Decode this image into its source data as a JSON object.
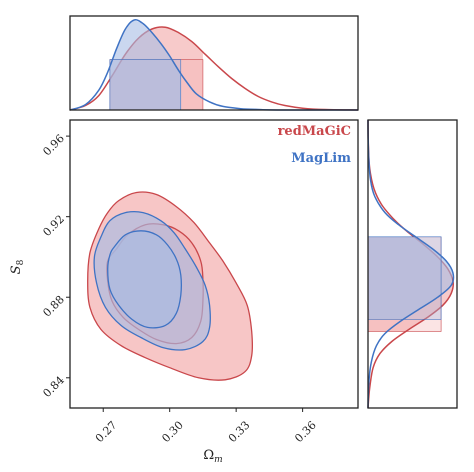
{
  "chart_data": {
    "type": "contour",
    "xlabel": "Ω_m",
    "xlabel_main": "Ω",
    "xlabel_sub": "m",
    "ylabel": "S_8",
    "ylabel_main": "S",
    "ylabel_sub": "8",
    "xlim": [
      0.255,
      0.385
    ],
    "ylim": [
      0.825,
      0.968
    ],
    "xticks": [
      0.27,
      0.3,
      0.33,
      0.36
    ],
    "xtick_labels": [
      "0.27",
      "0.30",
      "0.33",
      "0.36"
    ],
    "yticks": [
      0.84,
      0.88,
      0.92,
      0.96
    ],
    "ytick_labels": [
      "0.84",
      "0.88",
      "0.92",
      "0.96"
    ],
    "legend_position": "top-right",
    "series": [
      {
        "name": "redMaGiC",
        "color": "#c9474b",
        "fill": "#f4b3b3",
        "omega_m_mean": 0.292,
        "s8_mean": 0.884,
        "omega_m_68": [
          0.273,
          0.315
        ],
        "s8_68": [
          0.863,
          0.91
        ],
        "contour_68": [
          [
            0.276,
            0.904
          ],
          [
            0.281,
            0.911
          ],
          [
            0.289,
            0.916
          ],
          [
            0.297,
            0.916
          ],
          [
            0.304,
            0.913
          ],
          [
            0.31,
            0.907
          ],
          [
            0.314,
            0.898
          ],
          [
            0.315,
            0.889
          ],
          [
            0.315,
            0.878
          ],
          [
            0.314,
            0.868
          ],
          [
            0.31,
            0.86
          ],
          [
            0.303,
            0.857
          ],
          [
            0.294,
            0.859
          ],
          [
            0.286,
            0.864
          ],
          [
            0.279,
            0.87
          ],
          [
            0.274,
            0.878
          ],
          [
            0.272,
            0.888
          ],
          [
            0.272,
            0.898
          ]
        ],
        "contour_95": [
          [
            0.268,
            0.914
          ],
          [
            0.272,
            0.922
          ],
          [
            0.277,
            0.928
          ],
          [
            0.285,
            0.932
          ],
          [
            0.294,
            0.931
          ],
          [
            0.303,
            0.925
          ],
          [
            0.311,
            0.917
          ],
          [
            0.318,
            0.907
          ],
          [
            0.324,
            0.898
          ],
          [
            0.33,
            0.887
          ],
          [
            0.335,
            0.876
          ],
          [
            0.337,
            0.863
          ],
          [
            0.337,
            0.851
          ],
          [
            0.334,
            0.843
          ],
          [
            0.325,
            0.839
          ],
          [
            0.313,
            0.84
          ],
          [
            0.3,
            0.845
          ],
          [
            0.289,
            0.85
          ],
          [
            0.278,
            0.856
          ],
          [
            0.269,
            0.864
          ],
          [
            0.264,
            0.875
          ],
          [
            0.263,
            0.888
          ],
          [
            0.264,
            0.902
          ]
        ]
      },
      {
        "name": "MagLim",
        "color": "#3f73c4",
        "fill": "#a7bce4",
        "omega_m_mean": 0.287,
        "s8_mean": 0.889,
        "omega_m_68": [
          0.273,
          0.305
        ],
        "s8_68": [
          0.869,
          0.91
        ],
        "contour_68": [
          [
            0.275,
            0.905
          ],
          [
            0.28,
            0.911
          ],
          [
            0.287,
            0.913
          ],
          [
            0.294,
            0.911
          ],
          [
            0.299,
            0.906
          ],
          [
            0.303,
            0.899
          ],
          [
            0.305,
            0.891
          ],
          [
            0.305,
            0.881
          ],
          [
            0.303,
            0.872
          ],
          [
            0.298,
            0.866
          ],
          [
            0.29,
            0.865
          ],
          [
            0.283,
            0.869
          ],
          [
            0.277,
            0.876
          ],
          [
            0.273,
            0.884
          ],
          [
            0.272,
            0.894
          ],
          [
            0.273,
            0.901
          ]
        ],
        "contour_95": [
          [
            0.269,
            0.91
          ],
          [
            0.273,
            0.918
          ],
          [
            0.28,
            0.922
          ],
          [
            0.288,
            0.922
          ],
          [
            0.296,
            0.918
          ],
          [
            0.302,
            0.912
          ],
          [
            0.307,
            0.904
          ],
          [
            0.312,
            0.895
          ],
          [
            0.316,
            0.886
          ],
          [
            0.318,
            0.876
          ],
          [
            0.318,
            0.865
          ],
          [
            0.315,
            0.858
          ],
          [
            0.307,
            0.854
          ],
          [
            0.297,
            0.855
          ],
          [
            0.287,
            0.86
          ],
          [
            0.278,
            0.866
          ],
          [
            0.271,
            0.875
          ],
          [
            0.267,
            0.887
          ],
          [
            0.266,
            0.9
          ]
        ]
      }
    ],
    "marginal_x": [
      {
        "name": "redMaGiC",
        "x": [
          0.255,
          0.262,
          0.268,
          0.274,
          0.28,
          0.286,
          0.292,
          0.298,
          0.304,
          0.31,
          0.316,
          0.322,
          0.328,
          0.334,
          0.34,
          0.346,
          0.352,
          0.36,
          0.37,
          0.385
        ],
        "y": [
          0.0,
          0.05,
          0.16,
          0.38,
          0.62,
          0.8,
          0.9,
          0.92,
          0.86,
          0.76,
          0.62,
          0.48,
          0.35,
          0.24,
          0.15,
          0.09,
          0.05,
          0.02,
          0.005,
          0.0
        ]
      },
      {
        "name": "MagLim",
        "x": [
          0.255,
          0.262,
          0.268,
          0.272,
          0.276,
          0.28,
          0.284,
          0.288,
          0.292,
          0.296,
          0.3,
          0.304,
          0.308,
          0.312,
          0.318,
          0.324,
          0.332,
          0.34,
          0.35,
          0.385
        ],
        "y": [
          0.0,
          0.06,
          0.22,
          0.42,
          0.68,
          0.9,
          1.0,
          0.96,
          0.86,
          0.74,
          0.6,
          0.44,
          0.3,
          0.18,
          0.09,
          0.04,
          0.015,
          0.005,
          0.0,
          0.0
        ]
      }
    ],
    "marginal_y": [
      {
        "name": "redMaGiC",
        "y": [
          0.825,
          0.835,
          0.845,
          0.852,
          0.858,
          0.864,
          0.87,
          0.876,
          0.882,
          0.888,
          0.894,
          0.9,
          0.906,
          0.912,
          0.918,
          0.926,
          0.934,
          0.944,
          0.955,
          0.968
        ],
        "x": [
          0.0,
          0.02,
          0.06,
          0.14,
          0.28,
          0.48,
          0.7,
          0.88,
          0.98,
          1.0,
          0.94,
          0.82,
          0.66,
          0.48,
          0.32,
          0.16,
          0.07,
          0.02,
          0.005,
          0.0
        ]
      },
      {
        "name": "MagLim",
        "y": [
          0.825,
          0.838,
          0.848,
          0.856,
          0.862,
          0.868,
          0.874,
          0.88,
          0.886,
          0.892,
          0.898,
          0.904,
          0.91,
          0.916,
          0.922,
          0.93,
          0.938,
          0.948,
          0.958,
          0.968
        ],
        "x": [
          0.0,
          0.01,
          0.04,
          0.1,
          0.2,
          0.38,
          0.6,
          0.82,
          0.98,
          1.0,
          0.92,
          0.76,
          0.56,
          0.36,
          0.2,
          0.08,
          0.03,
          0.01,
          0.002,
          0.0
        ]
      }
    ]
  }
}
